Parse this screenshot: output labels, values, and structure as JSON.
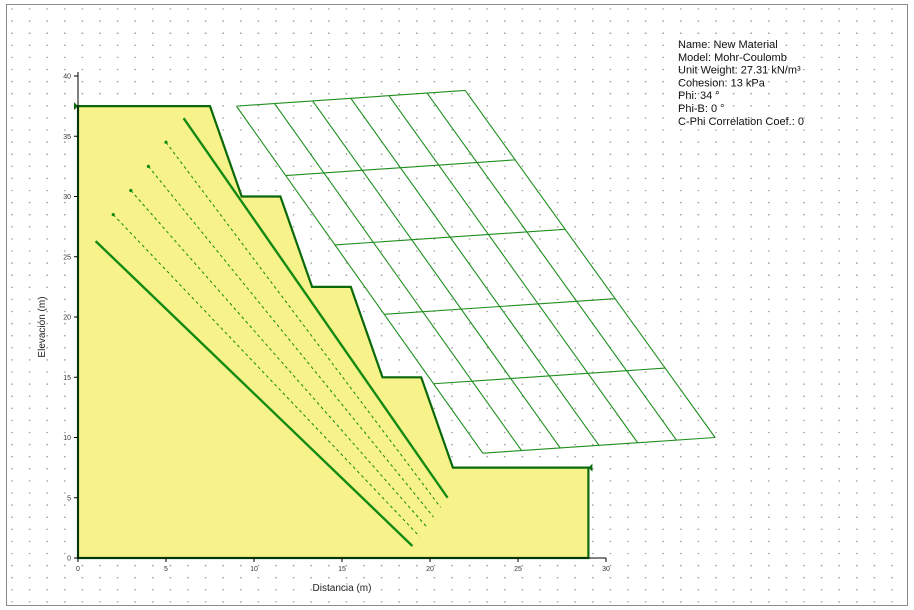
{
  "chart_data": {
    "type": "diagram",
    "xlabel": "Distancia (m)",
    "ylabel": "Elevación (m)",
    "xlim": [
      0,
      30
    ],
    "ylim": [
      0,
      40
    ],
    "x_ticks": [
      "0",
      "5",
      "10",
      "15",
      "20",
      "25",
      "30"
    ],
    "y_ticks": [
      "0",
      "5",
      "10",
      "15",
      "20",
      "25",
      "30",
      "35",
      "40"
    ],
    "material_legend": [
      "Name: New Material",
      "Model: Mohr-Coulomb",
      "Unit Weight: 27.31 kN/m³",
      "Cohesion: 13 kPa",
      "Phi: 34 °",
      "Phi-B: 0 °",
      "C-Phi Correlation Coef.: 0"
    ],
    "slope_profile": [
      [
        0,
        0
      ],
      [
        0,
        37.5
      ],
      [
        7.5,
        37.5
      ],
      [
        9.3,
        30
      ],
      [
        11.5,
        30
      ],
      [
        13.3,
        22.5
      ],
      [
        15.5,
        22.5
      ],
      [
        17.3,
        15
      ],
      [
        19.5,
        15
      ],
      [
        21.3,
        7.5
      ],
      [
        29,
        7.5
      ],
      [
        29,
        0
      ]
    ],
    "slip_surfaces": [
      {
        "style": "solid",
        "start": [
          1,
          26.3
        ],
        "end": [
          19,
          1
        ]
      },
      {
        "style": "solid",
        "start": [
          6,
          36.5
        ],
        "end": [
          21,
          5
        ]
      },
      {
        "style": "dashed",
        "start": [
          2,
          28.5
        ],
        "end": [
          19.4,
          1.8
        ]
      },
      {
        "style": "dashed",
        "start": [
          3,
          30.5
        ],
        "end": [
          19.8,
          2.6
        ]
      },
      {
        "style": "dashed",
        "start": [
          4,
          32.5
        ],
        "end": [
          20.2,
          3.4
        ]
      },
      {
        "style": "dashed",
        "start": [
          5,
          34.5
        ],
        "end": [
          20.6,
          4.2
        ]
      }
    ],
    "search_grid": {
      "corners": {
        "top_left": [
          9,
          37.5
        ],
        "top_right": [
          22,
          38.8
        ],
        "bottom_right": [
          36.2,
          10
        ],
        "bottom_left": [
          23,
          8.7
        ]
      },
      "columns": 6,
      "rows": 5
    },
    "grid_dots": true
  }
}
